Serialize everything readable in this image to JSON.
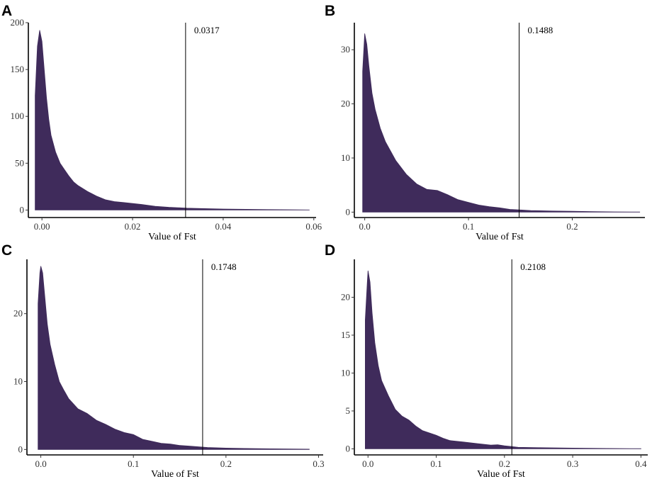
{
  "chart_data": [
    {
      "panel": "A",
      "type": "area",
      "title": "",
      "xlabel": "Value of Fst",
      "ylabel": "",
      "fill_color": "#3f2b5b",
      "xlim": [
        -0.003,
        0.0605
      ],
      "ylim": [
        -8,
        200
      ],
      "x_ticks": [
        0.0,
        0.02,
        0.04,
        0.06
      ],
      "x_tick_labels": [
        "0.00",
        "0.02",
        "0.04",
        "0.06"
      ],
      "y_ticks": [
        0,
        50,
        100,
        150,
        200
      ],
      "y_tick_labels": [
        "0",
        "50",
        "100",
        "150",
        "200"
      ],
      "threshold": 0.0317,
      "threshold_label": "0.0317",
      "x": [
        -0.0015,
        -0.0015,
        -0.001,
        -0.0005,
        0.0,
        0.0005,
        0.001,
        0.0015,
        0.002,
        0.003,
        0.004,
        0.005,
        0.006,
        0.007,
        0.008,
        0.01,
        0.012,
        0.014,
        0.016,
        0.018,
        0.02,
        0.022,
        0.025,
        0.028,
        0.03,
        0.032,
        0.035,
        0.04,
        0.045,
        0.05,
        0.055,
        0.059
      ],
      "y": [
        0,
        122,
        175,
        192,
        180,
        150,
        120,
        97,
        80,
        62,
        50,
        43,
        36,
        30,
        26,
        20,
        15,
        11,
        9,
        8,
        7,
        6,
        4,
        3,
        2.5,
        2,
        1.6,
        1.1,
        0.8,
        0.5,
        0.3,
        0.1
      ]
    },
    {
      "panel": "B",
      "type": "area",
      "title": "",
      "xlabel": "Value of Fst",
      "ylabel": "",
      "fill_color": "#3f2b5b",
      "xlim": [
        -0.01,
        0.27
      ],
      "ylim": [
        -1,
        35
      ],
      "x_ticks": [
        0.0,
        0.1,
        0.2
      ],
      "x_tick_labels": [
        "0.0",
        "0.1",
        "0.2"
      ],
      "y_ticks": [
        0,
        10,
        20,
        30
      ],
      "y_tick_labels": [
        "0",
        "10",
        "20",
        "30"
      ],
      "threshold": 0.1488,
      "threshold_label": "0.1488",
      "x": [
        -0.002,
        -0.002,
        0.0,
        0.002,
        0.004,
        0.007,
        0.01,
        0.015,
        0.02,
        0.03,
        0.04,
        0.05,
        0.06,
        0.07,
        0.08,
        0.09,
        0.1,
        0.11,
        0.12,
        0.13,
        0.14,
        0.15,
        0.16,
        0.18,
        0.2,
        0.22,
        0.24,
        0.265
      ],
      "y": [
        0,
        26,
        33,
        31,
        27,
        22,
        19,
        15.5,
        13,
        9.5,
        7,
        5.2,
        4.2,
        4,
        3.2,
        2.3,
        1.8,
        1.3,
        1,
        0.8,
        0.5,
        0.4,
        0.3,
        0.2,
        0.15,
        0.1,
        0.05,
        0.02
      ]
    },
    {
      "panel": "C",
      "type": "area",
      "title": "",
      "xlabel": "Value of Fst",
      "ylabel": "",
      "fill_color": "#3f2b5b",
      "xlim": [
        -0.015,
        0.305
      ],
      "ylim": [
        -0.8,
        28
      ],
      "x_ticks": [
        0.0,
        0.1,
        0.2,
        0.3
      ],
      "x_tick_labels": [
        "0.0",
        "0.1",
        "0.2",
        "0.3"
      ],
      "y_ticks": [
        0,
        10,
        20
      ],
      "y_tick_labels": [
        "0",
        "10",
        "20"
      ],
      "threshold": 0.1748,
      "threshold_label": "0.1748",
      "x": [
        -0.003,
        -0.003,
        -0.001,
        0.0,
        0.002,
        0.004,
        0.007,
        0.01,
        0.015,
        0.02,
        0.025,
        0.03,
        0.04,
        0.05,
        0.06,
        0.07,
        0.08,
        0.09,
        0.1,
        0.11,
        0.12,
        0.13,
        0.14,
        0.15,
        0.16,
        0.17,
        0.18,
        0.2,
        0.22,
        0.25,
        0.29
      ],
      "y": [
        0,
        21.5,
        26,
        27,
        26,
        23,
        18.5,
        15.5,
        12.5,
        10,
        8.7,
        7.5,
        6,
        5.3,
        4.3,
        3.7,
        3,
        2.5,
        2.2,
        1.5,
        1.2,
        0.9,
        0.8,
        0.6,
        0.5,
        0.4,
        0.3,
        0.2,
        0.15,
        0.1,
        0.05
      ]
    },
    {
      "panel": "D",
      "type": "area",
      "title": "",
      "xlabel": "Value of Fst",
      "ylabel": "",
      "fill_color": "#3f2b5b",
      "xlim": [
        -0.02,
        0.41
      ],
      "ylim": [
        -0.8,
        25
      ],
      "x_ticks": [
        0.0,
        0.1,
        0.2,
        0.3,
        0.4
      ],
      "x_tick_labels": [
        "0.0",
        "0.1",
        "0.2",
        "0.3",
        "0.4"
      ],
      "y_ticks": [
        0,
        5,
        10,
        15,
        20
      ],
      "y_tick_labels": [
        "0",
        "5",
        "10",
        "15",
        "20"
      ],
      "threshold": 0.2108,
      "threshold_label": "0.2108",
      "x": [
        -0.004,
        -0.004,
        -0.001,
        0.0,
        0.003,
        0.006,
        0.01,
        0.015,
        0.02,
        0.03,
        0.04,
        0.05,
        0.06,
        0.07,
        0.08,
        0.09,
        0.1,
        0.11,
        0.12,
        0.14,
        0.16,
        0.18,
        0.19,
        0.2,
        0.21,
        0.22,
        0.25,
        0.3,
        0.35,
        0.4
      ],
      "y": [
        0,
        17,
        22,
        23.5,
        22,
        18,
        14,
        11,
        9,
        7,
        5.2,
        4.3,
        3.8,
        3,
        2.4,
        2.1,
        1.8,
        1.4,
        1.1,
        0.9,
        0.7,
        0.5,
        0.55,
        0.4,
        0.3,
        0.2,
        0.15,
        0.1,
        0.05,
        0.02
      ]
    }
  ]
}
